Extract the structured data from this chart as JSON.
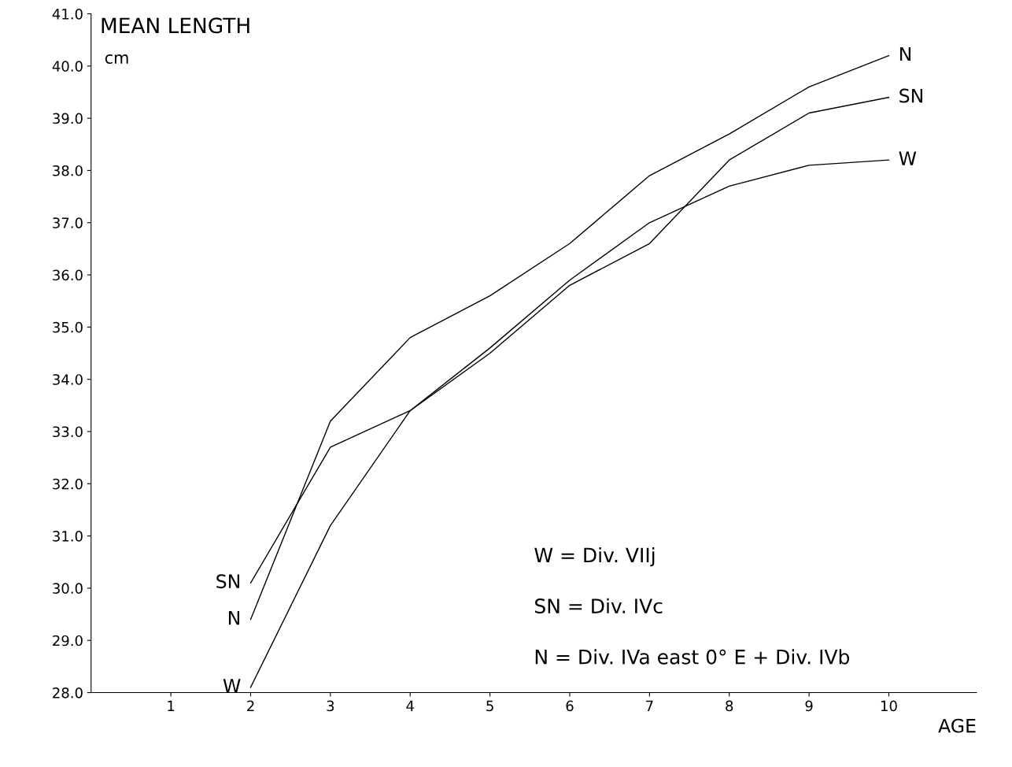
{
  "chart_data": {
    "type": "line",
    "title": "MEAN LENGTH",
    "ylabel": "cm",
    "xlabel": "AGE",
    "x": [
      2,
      3,
      4,
      5,
      6,
      7,
      8,
      9,
      10
    ],
    "series": [
      {
        "name": "N",
        "color": "#000000",
        "values": [
          29.4,
          33.2,
          34.8,
          35.6,
          36.6,
          37.9,
          38.7,
          39.6,
          40.2
        ]
      },
      {
        "name": "SN",
        "color": "#000000",
        "values": [
          30.1,
          32.7,
          33.4,
          34.5,
          35.8,
          36.6,
          38.2,
          39.1,
          39.4
        ]
      },
      {
        "name": "W",
        "color": "#000000",
        "values": [
          28.1,
          31.2,
          33.4,
          34.6,
          35.9,
          37.0,
          37.7,
          38.1,
          38.2
        ]
      }
    ],
    "xlim": [
      0,
      11.1
    ],
    "xticks": [
      1,
      2,
      3,
      4,
      5,
      6,
      7,
      8,
      9,
      10
    ],
    "ylim": [
      28,
      41
    ],
    "yticks": [
      {
        "value": 28,
        "label": "28.0"
      },
      {
        "value": 29,
        "label": "29.0"
      },
      {
        "value": 30,
        "label": "30.0"
      },
      {
        "value": 31,
        "label": "31.0"
      },
      {
        "value": 32,
        "label": "32.0"
      },
      {
        "value": 33,
        "label": "33.0"
      },
      {
        "value": 34,
        "label": "34.0"
      },
      {
        "value": 35,
        "label": "35.0"
      },
      {
        "value": 36,
        "label": "36.0"
      },
      {
        "value": 37,
        "label": "37.0"
      },
      {
        "value": 38,
        "label": "38.0"
      },
      {
        "value": 39,
        "label": "39.0"
      },
      {
        "value": 40,
        "label": "40.0"
      },
      {
        "value": 41,
        "label": "41.0"
      }
    ],
    "annotations": [
      "W = Div. VIIj",
      "SN = Div. IVc",
      "N = Div. IVa east 0° E + Div. IVb"
    ],
    "grid": false,
    "legend": false,
    "marker": "none",
    "line_style": "solid"
  }
}
